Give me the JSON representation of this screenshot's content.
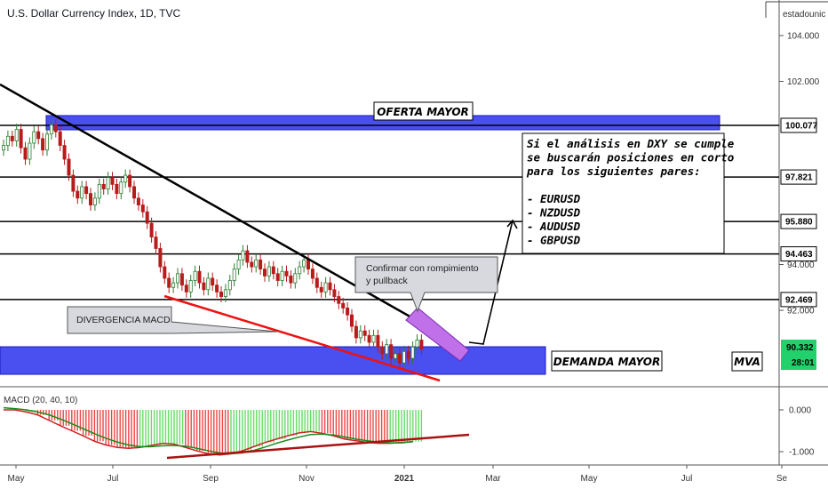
{
  "chart_data": {
    "type": "candlestick",
    "title": "U.S. Dollar Currency Index, 1D, TVC",
    "header_label": "estadounic",
    "price_axis": {
      "ticks": [
        "104.000",
        "102.000",
        "94.000",
        "92.000"
      ],
      "ylim": [
        89.0,
        105.0
      ]
    },
    "time_axis": {
      "ticks": [
        "May",
        "Jul",
        "Sep",
        "Nov",
        "2021",
        "Mar",
        "May",
        "Jul",
        "Se"
      ]
    },
    "levels": [
      {
        "value": 100.077,
        "label": "100.077"
      },
      {
        "value": 97.821,
        "label": "97.821"
      },
      {
        "value": 95.88,
        "label": "95.880"
      },
      {
        "value": 94.463,
        "label": "94.463"
      },
      {
        "value": 92.469,
        "label": "92.469"
      }
    ],
    "last_price": {
      "value": 90.332,
      "label": "90.332",
      "countdown": "28:01",
      "color": "#22d16b"
    },
    "price_series": [
      99.2,
      99.6,
      99.4,
      99.9,
      99.1,
      98.6,
      99.3,
      99.8,
      99.5,
      99.0,
      99.7,
      100.1,
      99.8,
      99.2,
      98.6,
      97.9,
      97.2,
      96.9,
      97.4,
      97.1,
      96.6,
      96.9,
      97.5,
      97.3,
      97.8,
      97.5,
      97.1,
      97.6,
      97.9,
      97.4,
      96.9,
      96.6,
      96.3,
      95.8,
      95.2,
      94.7,
      93.9,
      93.4,
      93.0,
      93.2,
      93.6,
      93.1,
      92.8,
      93.3,
      93.7,
      93.2,
      92.9,
      93.4,
      93.1,
      92.8,
      92.6,
      92.9,
      93.3,
      93.8,
      94.2,
      94.6,
      94.1,
      93.9,
      94.2,
      93.8,
      93.5,
      93.9,
      93.6,
      93.3,
      93.7,
      93.5,
      93.2,
      93.6,
      93.9,
      94.2,
      93.8,
      93.4,
      93.0,
      92.8,
      93.2,
      92.9,
      92.6,
      92.3,
      92.1,
      91.8,
      91.3,
      90.8,
      91.1,
      90.9,
      90.6,
      90.9,
      90.4,
      90.1,
      90.5,
      89.9,
      90.1,
      89.7,
      90.2,
      89.9,
      90.4,
      90.7,
      90.3
    ],
    "zones": [
      {
        "name": "OFERTA MAYOR",
        "low": 99.9,
        "high": 100.4,
        "color": "#4a4ff0"
      },
      {
        "name": "DEMANDA MAYOR",
        "low": 89.3,
        "high": 90.4,
        "color": "#4a4ff0"
      }
    ],
    "annotations": {
      "note_lines": [
        "Si el análisis en DXY se cumple",
        "se buscarán posiciones en corto",
        "para los siguientes pares:",
        "",
        "- EURUSD",
        "- NZDUSD",
        "- AUDUSD",
        "- GBPUSD"
      ],
      "callout_confirm": [
        "Confirmar con rompimiento",
        "y pullback"
      ],
      "callout_divergence": "DIVERGENCIA MACD",
      "tag": "MVA"
    },
    "macd": {
      "title": "MACD (20, 40, 10)",
      "ticks": [
        "0.000",
        "-1.000"
      ],
      "ylim": [
        -1.25,
        0.35
      ],
      "macd_series": [
        0.0,
        0.0,
        -0.05,
        -0.12,
        -0.25,
        -0.38,
        -0.5,
        -0.62,
        -0.75,
        -0.84,
        -0.9,
        -0.92,
        -0.9,
        -0.85,
        -0.8,
        -0.82,
        -0.9,
        -0.98,
        -1.05,
        -1.08,
        -1.05,
        -0.98,
        -0.88,
        -0.78,
        -0.7,
        -0.62,
        -0.55,
        -0.52,
        -0.56,
        -0.62,
        -0.7,
        -0.74,
        -0.78,
        -0.8,
        -0.8,
        -0.78,
        -0.76
      ],
      "signal_series": [
        0.05,
        0.03,
        0.0,
        -0.05,
        -0.12,
        -0.22,
        -0.33,
        -0.45,
        -0.57,
        -0.68,
        -0.77,
        -0.84,
        -0.88,
        -0.88,
        -0.86,
        -0.85,
        -0.87,
        -0.92,
        -0.98,
        -1.03,
        -1.05,
        -1.03,
        -0.97,
        -0.89,
        -0.8,
        -0.72,
        -0.65,
        -0.59,
        -0.58,
        -0.6,
        -0.65,
        -0.7,
        -0.74,
        -0.77,
        -0.79,
        -0.79,
        -0.76
      ],
      "histogram": [
        0.15,
        0.12,
        0.1,
        -0.05,
        -0.1,
        -0.18,
        -0.22,
        -0.28,
        -0.22,
        -0.15,
        -0.1,
        -0.05,
        0.05,
        0.1,
        0.12,
        0.05,
        -0.05,
        -0.12,
        -0.15,
        -0.1,
        0.05,
        0.12,
        0.18,
        0.22,
        0.25,
        0.22,
        0.15,
        0.1,
        -0.05,
        -0.1,
        -0.12,
        -0.1,
        -0.06,
        -0.02,
        0.02,
        0.04,
        0.05
      ]
    }
  }
}
